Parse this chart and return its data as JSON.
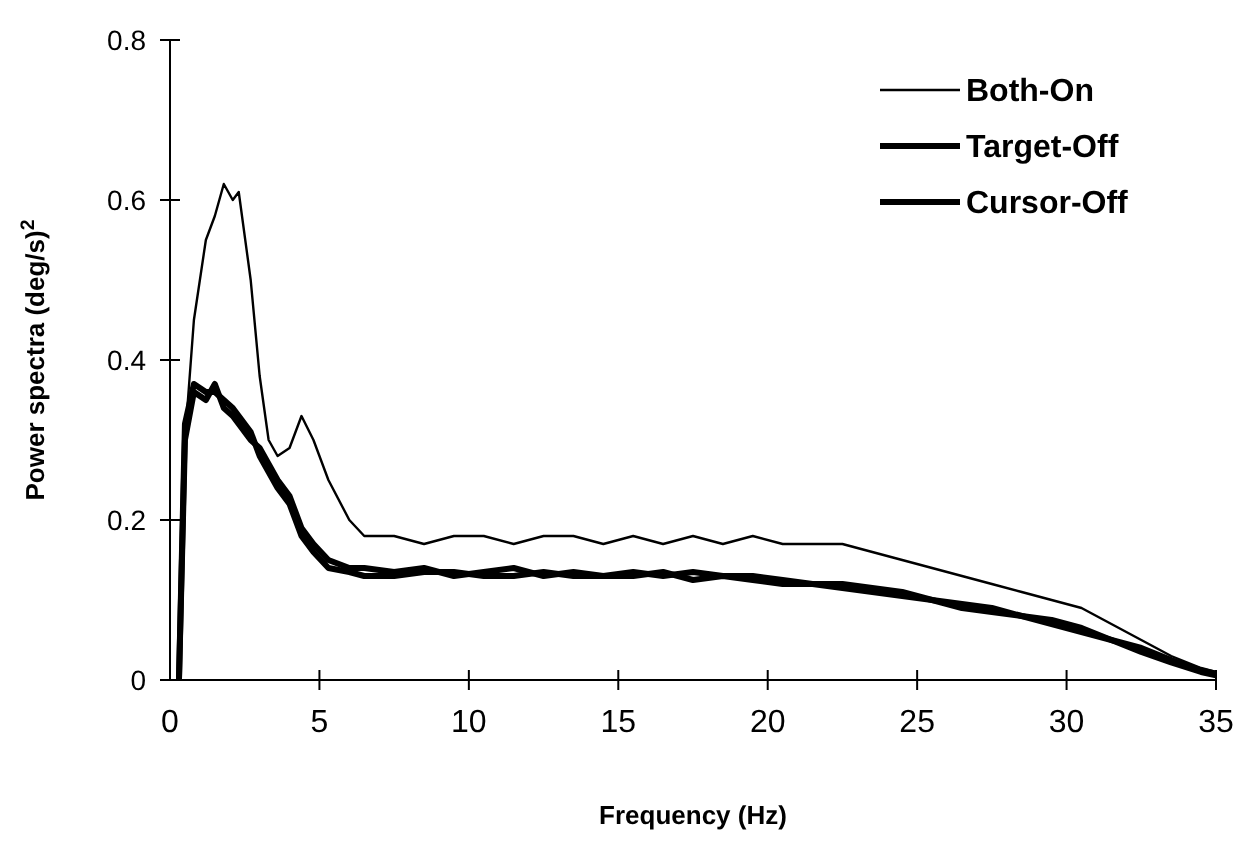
{
  "chart_data": {
    "type": "line",
    "xlabel": "Frequency (Hz)",
    "ylabel": "Power spectra (deg/s)$^{2}$",
    "xlim": [
      0,
      35
    ],
    "ylim": [
      0,
      0.8
    ],
    "xticks": [
      0,
      5,
      10,
      15,
      20,
      25,
      30,
      35
    ],
    "yticks": [
      0,
      0.2,
      0.4,
      0.6,
      0.8
    ],
    "grid": false,
    "legend": "top right",
    "marker": "none",
    "line_style": "solid",
    "x": [
      0.3,
      0.5,
      0.8,
      1.2,
      1.5,
      1.8,
      2.1,
      2.3,
      2.7,
      3.0,
      3.3,
      3.6,
      4.0,
      4.4,
      4.8,
      5.3,
      6.0,
      6.5,
      7.5,
      8.5,
      9.5,
      10.5,
      11.5,
      12.5,
      13.5,
      14.5,
      15.5,
      16.5,
      17.5,
      18.5,
      19.5,
      20.5,
      21.5,
      22.5,
      23.5,
      24.5,
      25.5,
      26.5,
      27.5,
      28.5,
      29.5,
      30.5,
      31.5,
      32.5,
      33.5,
      34.5,
      35
    ],
    "series": [
      {
        "name": "Both-On",
        "color": "#000000",
        "values": [
          0,
          0.3,
          0.45,
          0.55,
          0.58,
          0.62,
          0.6,
          0.61,
          0.5,
          0.38,
          0.3,
          0.28,
          0.29,
          0.33,
          0.3,
          0.25,
          0.2,
          0.18,
          0.18,
          0.17,
          0.18,
          0.18,
          0.17,
          0.18,
          0.18,
          0.17,
          0.18,
          0.17,
          0.18,
          0.17,
          0.18,
          0.17,
          0.17,
          0.17,
          0.16,
          0.15,
          0.14,
          0.13,
          0.12,
          0.11,
          0.1,
          0.09,
          0.07,
          0.05,
          0.03,
          0.015,
          0.01
        ]
      },
      {
        "name": "Target-Off",
        "color": "#000000",
        "values": [
          0,
          0.3,
          0.36,
          0.35,
          0.37,
          0.34,
          0.33,
          0.32,
          0.3,
          0.29,
          0.27,
          0.25,
          0.23,
          0.19,
          0.17,
          0.15,
          0.14,
          0.14,
          0.135,
          0.14,
          0.13,
          0.135,
          0.14,
          0.13,
          0.135,
          0.13,
          0.135,
          0.13,
          0.135,
          0.13,
          0.13,
          0.125,
          0.12,
          0.12,
          0.115,
          0.11,
          0.1,
          0.095,
          0.09,
          0.08,
          0.075,
          0.065,
          0.05,
          0.04,
          0.025,
          0.012,
          0.008
        ]
      },
      {
        "name": "Cursor-Off",
        "color": "#000000",
        "values": [
          0,
          0.32,
          0.37,
          0.36,
          0.36,
          0.35,
          0.34,
          0.33,
          0.31,
          0.28,
          0.26,
          0.24,
          0.22,
          0.18,
          0.16,
          0.14,
          0.135,
          0.13,
          0.13,
          0.135,
          0.135,
          0.13,
          0.13,
          0.135,
          0.13,
          0.13,
          0.13,
          0.135,
          0.125,
          0.13,
          0.125,
          0.12,
          0.12,
          0.115,
          0.11,
          0.105,
          0.1,
          0.09,
          0.085,
          0.08,
          0.07,
          0.06,
          0.05,
          0.035,
          0.022,
          0.01,
          0.006
        ]
      }
    ]
  }
}
